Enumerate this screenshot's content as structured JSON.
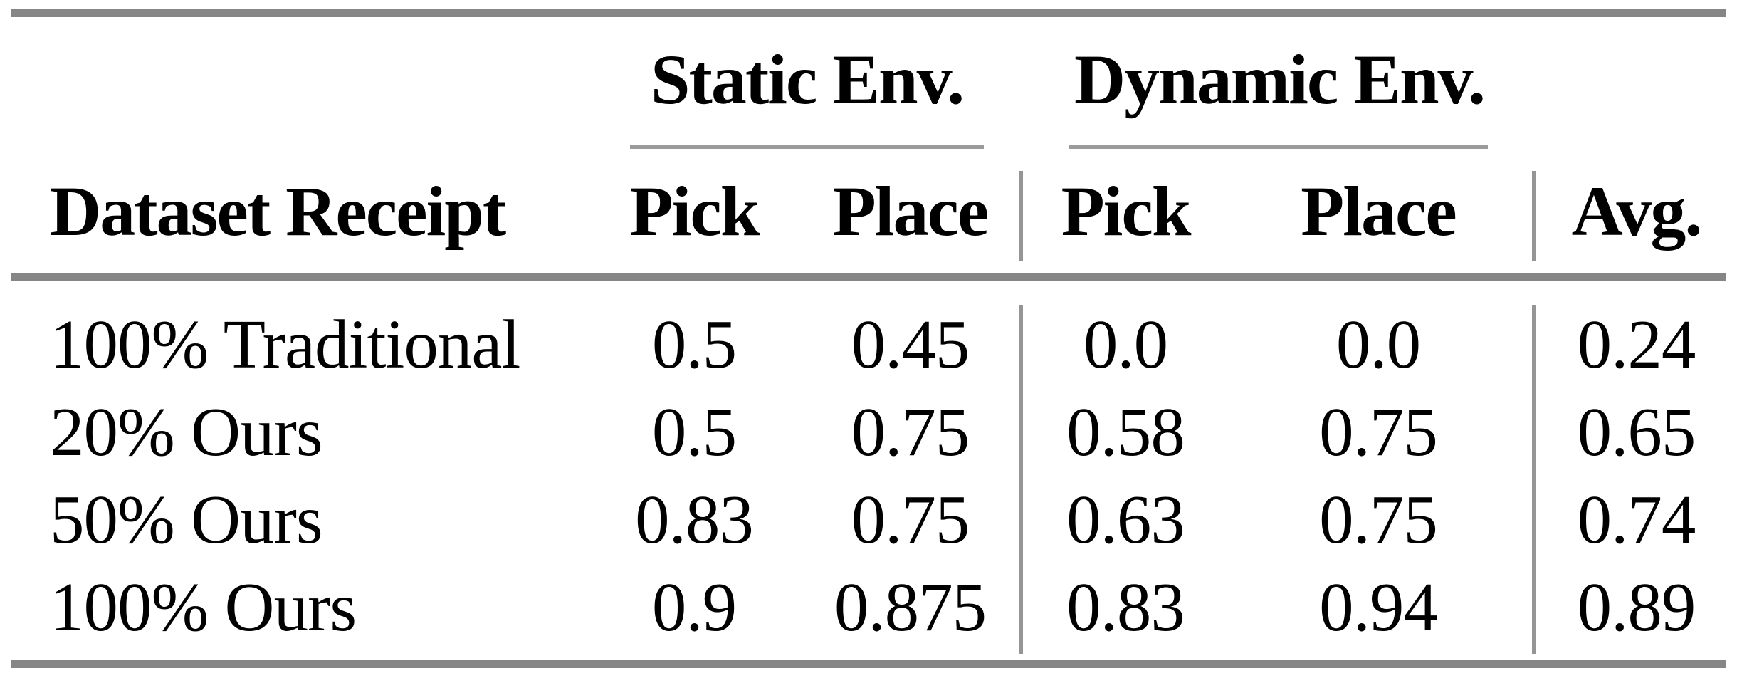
{
  "table": {
    "groups": [
      {
        "label": "Static Env."
      },
      {
        "label": "Dynamic Env."
      }
    ],
    "columns": [
      {
        "label": "Dataset Receipt"
      },
      {
        "label": "Pick"
      },
      {
        "label": "Place"
      },
      {
        "label": "Pick"
      },
      {
        "label": "Place"
      },
      {
        "label": "Avg."
      }
    ],
    "rows": [
      {
        "label": "100% Traditional",
        "values": [
          "0.5",
          "0.45",
          "0.0",
          "0.0",
          "0.24"
        ]
      },
      {
        "label": "20% Ours",
        "values": [
          "0.5",
          "0.75",
          "0.58",
          "0.75",
          "0.65"
        ]
      },
      {
        "label": "50% Ours",
        "values": [
          "0.83",
          "0.75",
          "0.63",
          "0.75",
          "0.74"
        ]
      },
      {
        "label": "100% Ours",
        "values": [
          "0.9",
          "0.875",
          "0.83",
          "0.94",
          "0.89"
        ]
      }
    ]
  },
  "chart_data": {
    "type": "table",
    "title": "",
    "column_groups": [
      "Static Env.",
      "Static Env.",
      "Dynamic Env.",
      "Dynamic Env.",
      ""
    ],
    "columns": [
      "Static Pick",
      "Static Place",
      "Dynamic Pick",
      "Dynamic Place",
      "Avg."
    ],
    "categories": [
      "100% Traditional",
      "20% Ours",
      "50% Ours",
      "100% Ours"
    ],
    "series": [
      {
        "name": "Static Pick",
        "values": [
          0.5,
          0.5,
          0.83,
          0.9
        ]
      },
      {
        "name": "Static Place",
        "values": [
          0.45,
          0.75,
          0.75,
          0.875
        ]
      },
      {
        "name": "Dynamic Pick",
        "values": [
          0.0,
          0.58,
          0.63,
          0.83
        ]
      },
      {
        "name": "Dynamic Place",
        "values": [
          0.0,
          0.75,
          0.75,
          0.94
        ]
      },
      {
        "name": "Avg.",
        "values": [
          0.24,
          0.65,
          0.74,
          0.89
        ]
      }
    ]
  },
  "colors": {
    "background": "#ffffff",
    "text": "#000000",
    "rule_heavy": "#868686",
    "rule_light": "#9b9b9b",
    "rule_vertical": "#959595"
  }
}
